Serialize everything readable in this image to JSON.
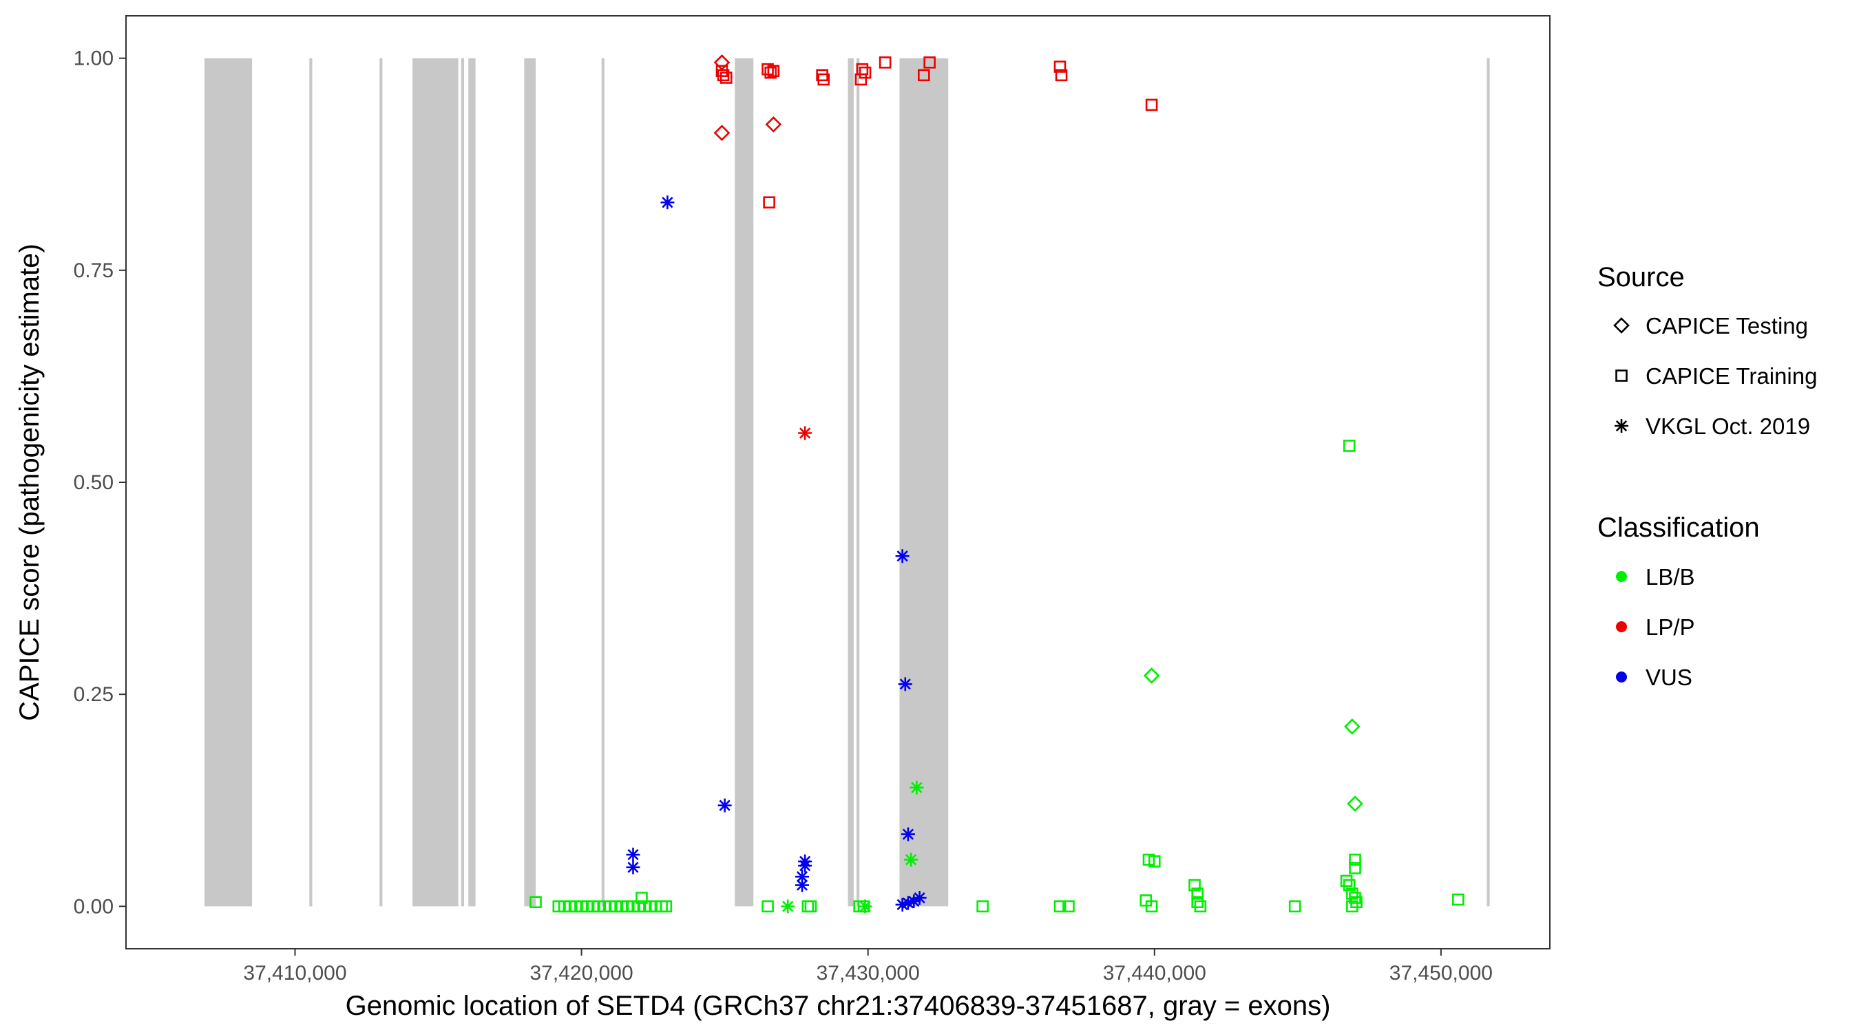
{
  "chart_data": {
    "type": "scatter",
    "xlabel": "Genomic location of SETD4 (GRCh37 chr21:37406839-37451687, gray = exons)",
    "ylabel": "CAPICE score (pathogenicity estimate)",
    "xlim": [
      37404100,
      37453800
    ],
    "ylim": [
      -0.05,
      1.05
    ],
    "x_ticks": [
      37410000,
      37420000,
      37430000,
      37440000,
      37450000
    ],
    "x_tick_labels": [
      "37,410,000",
      "37,420,000",
      "37,430,000",
      "37,440,000",
      "37,450,000"
    ],
    "y_ticks": [
      0,
      0.25,
      0.5,
      0.75,
      1.0
    ],
    "y_tick_labels": [
      "0.00",
      "0.25",
      "0.50",
      "0.75",
      "1.00"
    ],
    "grid": false,
    "exons": [
      [
        37406839,
        37408500
      ],
      [
        37410500,
        37410600
      ],
      [
        37412950,
        37413050
      ],
      [
        37414100,
        37415700
      ],
      [
        37415800,
        37415900
      ],
      [
        37416050,
        37416300
      ],
      [
        37418000,
        37418400
      ],
      [
        37420700,
        37420800
      ],
      [
        37425350,
        37426000
      ],
      [
        37429300,
        37429500
      ],
      [
        37429600,
        37429700
      ],
      [
        37431100,
        37432800
      ],
      [
        37451600,
        37451700
      ]
    ],
    "legends": [
      {
        "title": "Source",
        "placement": "right",
        "entries": [
          {
            "label": "CAPICE Testing",
            "shape": "diamond"
          },
          {
            "label": "CAPICE Training",
            "shape": "square"
          },
          {
            "label": "VKGL Oct. 2019",
            "shape": "asterisk"
          }
        ]
      },
      {
        "title": "Classification",
        "placement": "right",
        "entries": [
          {
            "label": "LB/B",
            "color": "#00ee00"
          },
          {
            "label": "LP/P",
            "color": "#ee0000"
          },
          {
            "label": "VUS",
            "color": "#0000ee"
          }
        ]
      }
    ],
    "colors": {
      "LB/B": "#00ee00",
      "LP/P": "#ee0000",
      "VUS": "#0000ee"
    },
    "series": [
      {
        "source": "CAPICE Testing",
        "classification": "LP/P",
        "shape": "diamond",
        "points": [
          [
            37424900,
            0.995
          ],
          [
            37424900,
            0.912
          ],
          [
            37426700,
            0.922
          ]
        ]
      },
      {
        "source": "CAPICE Testing",
        "classification": "LB/B",
        "shape": "diamond",
        "points": [
          [
            37439900,
            0.272
          ],
          [
            37446900,
            0.212
          ],
          [
            37447000,
            0.121
          ]
        ]
      },
      {
        "source": "CAPICE Training",
        "classification": "LP/P",
        "shape": "square",
        "points": [
          [
            37424900,
            0.985
          ],
          [
            37424950,
            0.98
          ],
          [
            37425050,
            0.977
          ],
          [
            37426500,
            0.987
          ],
          [
            37426600,
            0.983
          ],
          [
            37426700,
            0.985
          ],
          [
            37426550,
            0.83
          ],
          [
            37428400,
            0.98
          ],
          [
            37428450,
            0.975
          ],
          [
            37429800,
            0.987
          ],
          [
            37429900,
            0.983
          ],
          [
            37429750,
            0.975
          ],
          [
            37430600,
            0.995
          ],
          [
            37432150,
            0.995
          ],
          [
            37431950,
            0.98
          ],
          [
            37436700,
            0.99
          ],
          [
            37436750,
            0.98
          ],
          [
            37439900,
            0.945
          ]
        ]
      },
      {
        "source": "CAPICE Training",
        "classification": "LB/B",
        "shape": "square",
        "points": [
          [
            37418400,
            0.005
          ],
          [
            37419200,
            0.0
          ],
          [
            37419400,
            0.0
          ],
          [
            37419600,
            0.0
          ],
          [
            37419800,
            0.0
          ],
          [
            37420000,
            0.0
          ],
          [
            37420200,
            0.0
          ],
          [
            37420400,
            0.0
          ],
          [
            37420600,
            0.0
          ],
          [
            37420800,
            0.0
          ],
          [
            37421000,
            0.0
          ],
          [
            37421200,
            0.0
          ],
          [
            37421400,
            0.0
          ],
          [
            37421600,
            0.0
          ],
          [
            37421800,
            0.0
          ],
          [
            37422000,
            0.0
          ],
          [
            37422200,
            0.0
          ],
          [
            37422400,
            0.0
          ],
          [
            37422600,
            0.0
          ],
          [
            37422800,
            0.0
          ],
          [
            37422950,
            0.0
          ],
          [
            37422100,
            0.01
          ],
          [
            37426500,
            0.0
          ],
          [
            37427900,
            0.0
          ],
          [
            37428000,
            0.0
          ],
          [
            37429700,
            0.0
          ],
          [
            37429850,
            0.0
          ],
          [
            37434000,
            0.0
          ],
          [
            37436700,
            0.0
          ],
          [
            37437000,
            0.0
          ],
          [
            37439700,
            0.007
          ],
          [
            37439900,
            0.0
          ],
          [
            37439800,
            0.055
          ],
          [
            37440000,
            0.053
          ],
          [
            37441400,
            0.025
          ],
          [
            37441500,
            0.015
          ],
          [
            37441500,
            0.005
          ],
          [
            37441600,
            0.0
          ],
          [
            37444900,
            0.0
          ],
          [
            37446700,
            0.03
          ],
          [
            37446800,
            0.025
          ],
          [
            37446900,
            0.015
          ],
          [
            37446900,
            0.0
          ],
          [
            37447000,
            0.01
          ],
          [
            37447050,
            0.005
          ],
          [
            37447000,
            0.045
          ],
          [
            37447000,
            0.055
          ],
          [
            37446800,
            0.543
          ],
          [
            37450600,
            0.008
          ]
        ]
      },
      {
        "source": "VKGL Oct. 2019",
        "classification": "VUS",
        "shape": "asterisk",
        "points": [
          [
            37423000,
            0.83
          ],
          [
            37425000,
            0.119
          ],
          [
            37421800,
            0.061
          ],
          [
            37421800,
            0.046
          ],
          [
            37427800,
            0.053
          ],
          [
            37427800,
            0.048
          ],
          [
            37427700,
            0.035
          ],
          [
            37427700,
            0.025
          ],
          [
            37431200,
            0.413
          ],
          [
            37431300,
            0.262
          ],
          [
            37431400,
            0.085
          ],
          [
            37431200,
            0.002
          ],
          [
            37431400,
            0.004
          ],
          [
            37431600,
            0.006
          ],
          [
            37431800,
            0.01
          ]
        ]
      },
      {
        "source": "VKGL Oct. 2019",
        "classification": "LP/P",
        "shape": "asterisk",
        "points": [
          [
            37427800,
            0.558
          ]
        ]
      },
      {
        "source": "VKGL Oct. 2019",
        "classification": "LB/B",
        "shape": "asterisk",
        "points": [
          [
            37431700,
            0.14
          ],
          [
            37431500,
            0.055
          ],
          [
            37427200,
            0.0
          ],
          [
            37429900,
            0.0
          ]
        ]
      }
    ]
  }
}
